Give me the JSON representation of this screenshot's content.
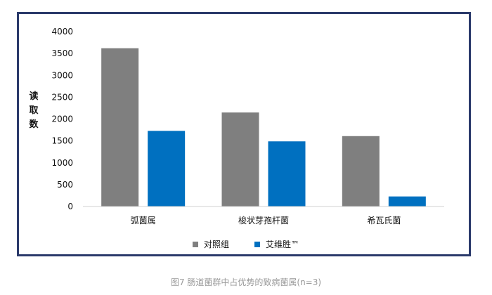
{
  "chart_data": {
    "type": "bar",
    "categories": [
      "弧菌属",
      "梭状芽孢杆菌",
      "希瓦氏菌"
    ],
    "series": [
      {
        "name": "对照组",
        "color": "#7f7f7f",
        "values": [
          3620,
          2150,
          1610
        ]
      },
      {
        "name": "艾维胜™",
        "color": "#0070c0",
        "values": [
          1730,
          1490,
          230
        ]
      }
    ],
    "ylabel": "读取数",
    "ylim": [
      0,
      4000
    ],
    "yticks": [
      0,
      500,
      1000,
      1500,
      2000,
      2500,
      3000,
      3500,
      4000
    ],
    "grid": false,
    "legend_position": "bottom"
  },
  "caption": "图7 肠道菌群中占优势的致病菌属(n=3)"
}
